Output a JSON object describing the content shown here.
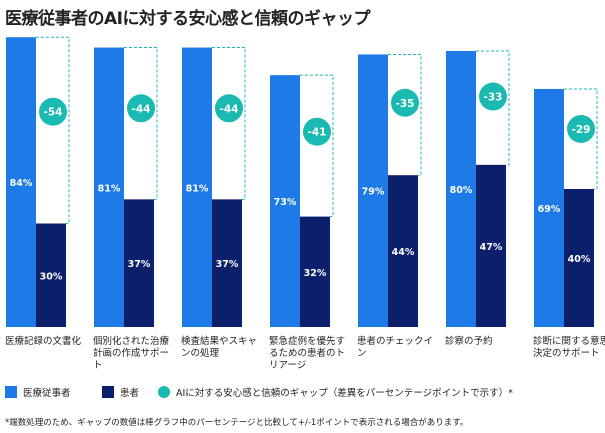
{
  "chart_data": {
    "type": "bar",
    "title": "医療従事者のAIに対する安心感と信頼のギャップ",
    "categories": [
      "医療記録の文書化",
      "個別化された治療計画の作成サポート",
      "検査結果やスキャンの処理",
      "緊急症例を優先するための患者のトリアージ",
      "患者のチェックイン",
      "診察の予約",
      "診断に関する意思決定のサポート"
    ],
    "series": [
      {
        "name": "医療従事者",
        "values": [
          84,
          81,
          81,
          73,
          79,
          80,
          69
        ],
        "color": "#1e7ae6"
      },
      {
        "name": "患者",
        "values": [
          30,
          37,
          37,
          32,
          44,
          47,
          40
        ],
        "color": "#0b1f6b"
      }
    ],
    "value_labels": {
      "providers": [
        "84%",
        "81%",
        "81%",
        "73%",
        "79%",
        "80%",
        "69%"
      ],
      "patients": [
        "30%",
        "37%",
        "37%",
        "32%",
        "44%",
        "47%",
        "40%"
      ]
    },
    "gap": {
      "name": "AIに対する安心感と信頼のギャップ（差異をパーセンテージポイントで示す）*",
      "values": [
        -54,
        -44,
        -44,
        -41,
        -35,
        -33,
        -29
      ],
      "labels": [
        "-54",
        "-44",
        "-44",
        "-41",
        "-35",
        "-33",
        "-29"
      ],
      "color": "#1ab9b2"
    },
    "ylim": [
      0,
      100
    ],
    "xlabel": "",
    "ylabel": "",
    "grid": false,
    "legend_position": "bottom"
  },
  "footnote": "*端数処理のため、ギャップの数値は棒グラフ中のパーセンテージと比較して+/-1ポイントで表示される場合があります。",
  "colors": {
    "accent": "#1e7ae6",
    "dark": "#0b1f6b",
    "teal": "#1ab9b2"
  }
}
